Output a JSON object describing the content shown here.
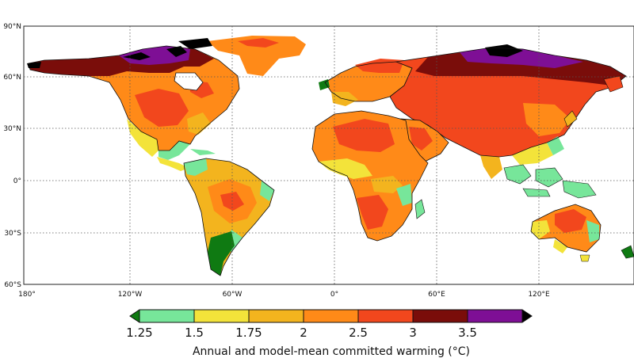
{
  "map": {
    "lat_labels": [
      "90°N",
      "60°N",
      "30°N",
      "0°",
      "30°S",
      "60°S"
    ],
    "lon_labels": [
      "180°",
      "120°W",
      "60°W",
      "0°",
      "60°E",
      "120°E"
    ],
    "gridlines": "dotted"
  },
  "colorbar": {
    "tick_labels": [
      "1.25",
      "1.5",
      "1.75",
      "2",
      "2.5",
      "3",
      "3.5"
    ],
    "colors": [
      "#77e69a",
      "#f3e33a",
      "#f3b41e",
      "#ff8a18",
      "#f2471d",
      "#7a0d0a",
      "#7e0f95"
    ],
    "underflow_color": "#0f7a12",
    "overflow_color": "#000000",
    "title": "Annual and model-mean committed warming (°C)"
  }
}
